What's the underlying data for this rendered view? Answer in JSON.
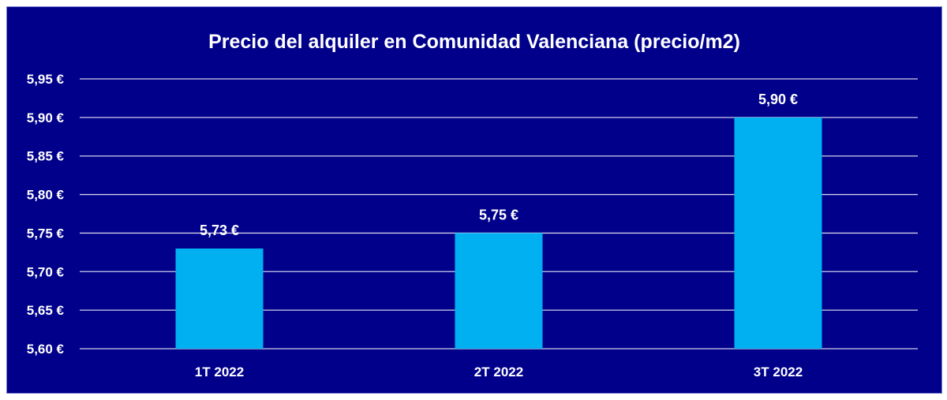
{
  "chart_data": {
    "type": "bar",
    "title": "Precio del alquiler en Comunidad Valenciana (precio/m2)",
    "categories": [
      "1T 2022",
      "2T 2022",
      "3T 2022"
    ],
    "values": [
      5.73,
      5.75,
      5.9
    ],
    "data_labels": [
      "5,73 €",
      "5,75 €",
      "5,90 €"
    ],
    "ylim": [
      5.6,
      5.95
    ],
    "yticks": [
      5.6,
      5.65,
      5.7,
      5.75,
      5.8,
      5.85,
      5.9,
      5.95
    ],
    "ytick_labels": [
      "5,60 €",
      "5,65 €",
      "5,70 €",
      "5,75 €",
      "5,80 €",
      "5,85 €",
      "5,90 €",
      "5,95 €"
    ],
    "grid": true,
    "colors": {
      "background": "#00008B",
      "bar": "#00B0F0",
      "gridline": "#D0D0E8",
      "text": "#FFFFFF"
    }
  }
}
